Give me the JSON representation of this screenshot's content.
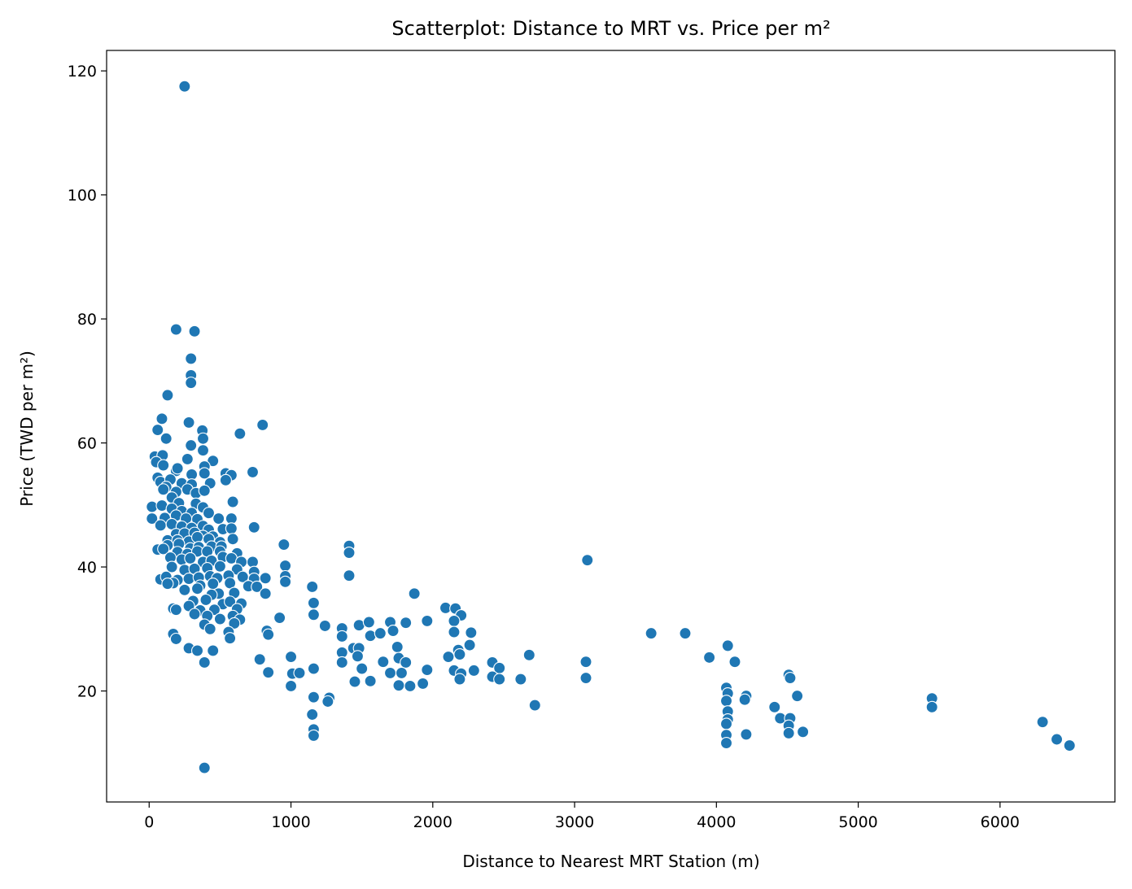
{
  "chart_data": {
    "type": "scatter",
    "title": "Scatterplot: Distance to MRT vs. Price per m²",
    "xlabel": "Distance to Nearest MRT Station (m)",
    "ylabel": "Price (TWD per m²)",
    "xlim": [
      -300,
      6810
    ],
    "ylim": [
      2.1,
      123.3
    ],
    "xticks": [
      0,
      1000,
      2000,
      3000,
      4000,
      5000,
      6000
    ],
    "xtick_labels": [
      "0",
      "1000",
      "2000",
      "3000",
      "4000",
      "5000",
      "6000"
    ],
    "yticks": [
      20,
      40,
      60,
      80,
      100,
      120
    ],
    "ytick_labels": [
      "20",
      "40",
      "60",
      "80",
      "100",
      "120"
    ],
    "grid": false,
    "legend": "none",
    "marker_color": "#1f77b4",
    "series": [
      {
        "points": [
          [
            250,
            117.5
          ],
          [
            390,
            7.6
          ],
          [
            190,
            78.3
          ],
          [
            320,
            78.0
          ],
          [
            295,
            73.6
          ],
          [
            295,
            70.9
          ],
          [
            295,
            69.7
          ],
          [
            130,
            67.7
          ],
          [
            90,
            63.9
          ],
          [
            60,
            62.1
          ],
          [
            280,
            63.3
          ],
          [
            640,
            61.5
          ],
          [
            800,
            62.9
          ],
          [
            375,
            62.0
          ],
          [
            380,
            60.7
          ],
          [
            120,
            60.7
          ],
          [
            295,
            59.6
          ],
          [
            380,
            58.8
          ],
          [
            40,
            57.8
          ],
          [
            95,
            58.0
          ],
          [
            50,
            56.9
          ],
          [
            100,
            56.4
          ],
          [
            450,
            57.1
          ],
          [
            270,
            57.4
          ],
          [
            390,
            56.2
          ],
          [
            190,
            55.5
          ],
          [
            200,
            55.9
          ],
          [
            300,
            54.9
          ],
          [
            390,
            55.1
          ],
          [
            540,
            55.1
          ],
          [
            580,
            54.8
          ],
          [
            730,
            55.3
          ],
          [
            60,
            54.4
          ],
          [
            80,
            53.7
          ],
          [
            150,
            54.1
          ],
          [
            230,
            53.5
          ],
          [
            300,
            53.3
          ],
          [
            430,
            53.5
          ],
          [
            540,
            54.0
          ],
          [
            120,
            52.9
          ],
          [
            100,
            52.5
          ],
          [
            190,
            52.1
          ],
          [
            270,
            52.5
          ],
          [
            330,
            51.9
          ],
          [
            390,
            52.3
          ],
          [
            160,
            51.2
          ],
          [
            210,
            50.3
          ],
          [
            330,
            50.2
          ],
          [
            590,
            50.5
          ],
          [
            20,
            49.7
          ],
          [
            90,
            49.9
          ],
          [
            160,
            49.4
          ],
          [
            380,
            49.6
          ],
          [
            230,
            49.0
          ],
          [
            300,
            48.7
          ],
          [
            420,
            48.7
          ],
          [
            20,
            47.8
          ],
          [
            110,
            47.9
          ],
          [
            190,
            48.3
          ],
          [
            260,
            47.8
          ],
          [
            340,
            47.7
          ],
          [
            490,
            47.8
          ],
          [
            580,
            47.8
          ],
          [
            80,
            46.7
          ],
          [
            160,
            46.9
          ],
          [
            230,
            46.5
          ],
          [
            300,
            46.3
          ],
          [
            380,
            46.6
          ],
          [
            420,
            46.0
          ],
          [
            520,
            46.1
          ],
          [
            580,
            46.2
          ],
          [
            740,
            46.4
          ],
          [
            190,
            45.3
          ],
          [
            250,
            45.4
          ],
          [
            320,
            45.5
          ],
          [
            380,
            45.0
          ],
          [
            450,
            44.9
          ],
          [
            130,
            44.3
          ],
          [
            200,
            44.3
          ],
          [
            280,
            44.1
          ],
          [
            340,
            44.8
          ],
          [
            420,
            44.5
          ],
          [
            500,
            44.0
          ],
          [
            590,
            44.5
          ],
          [
            130,
            43.5
          ],
          [
            210,
            43.7
          ],
          [
            290,
            43.0
          ],
          [
            350,
            43.2
          ],
          [
            440,
            43.3
          ],
          [
            510,
            43.3
          ],
          [
            950,
            43.6
          ],
          [
            1410,
            43.4
          ],
          [
            60,
            42.8
          ],
          [
            100,
            42.9
          ],
          [
            200,
            42.4
          ],
          [
            270,
            42.1
          ],
          [
            340,
            42.5
          ],
          [
            410,
            42.5
          ],
          [
            500,
            42.5
          ],
          [
            620,
            42.2
          ],
          [
            1410,
            42.3
          ],
          [
            150,
            41.5
          ],
          [
            230,
            41.2
          ],
          [
            290,
            41.4
          ],
          [
            380,
            40.8
          ],
          [
            440,
            41.0
          ],
          [
            520,
            41.6
          ],
          [
            580,
            41.4
          ],
          [
            650,
            40.8
          ],
          [
            730,
            40.8
          ],
          [
            960,
            40.2
          ],
          [
            3090,
            41.1
          ],
          [
            160,
            40.0
          ],
          [
            250,
            39.5
          ],
          [
            320,
            39.7
          ],
          [
            410,
            39.8
          ],
          [
            500,
            40.1
          ],
          [
            620,
            39.6
          ],
          [
            740,
            39.2
          ],
          [
            80,
            38.0
          ],
          [
            120,
            38.4
          ],
          [
            200,
            37.9
          ],
          [
            280,
            38.1
          ],
          [
            350,
            38.3
          ],
          [
            430,
            38.5
          ],
          [
            480,
            38.2
          ],
          [
            560,
            38.6
          ],
          [
            660,
            38.4
          ],
          [
            740,
            38.1
          ],
          [
            820,
            38.2
          ],
          [
            960,
            38.5
          ],
          [
            1410,
            38.6
          ],
          [
            170,
            37.4
          ],
          [
            130,
            37.3
          ],
          [
            360,
            37.0
          ],
          [
            450,
            37.3
          ],
          [
            570,
            37.4
          ],
          [
            700,
            36.9
          ],
          [
            760,
            36.8
          ],
          [
            960,
            37.6
          ],
          [
            1150,
            36.8
          ],
          [
            250,
            36.3
          ],
          [
            340,
            36.5
          ],
          [
            490,
            35.7
          ],
          [
            440,
            35.5
          ],
          [
            600,
            35.8
          ],
          [
            820,
            35.7
          ],
          [
            1870,
            35.7
          ],
          [
            310,
            34.5
          ],
          [
            400,
            34.7
          ],
          [
            520,
            34.0
          ],
          [
            570,
            34.4
          ],
          [
            650,
            34.1
          ],
          [
            1160,
            34.2
          ],
          [
            170,
            33.3
          ],
          [
            190,
            33.1
          ],
          [
            280,
            33.7
          ],
          [
            360,
            33.0
          ],
          [
            460,
            33.1
          ],
          [
            620,
            33.2
          ],
          [
            2090,
            33.4
          ],
          [
            2160,
            33.3
          ],
          [
            320,
            32.4
          ],
          [
            410,
            32.1
          ],
          [
            500,
            31.6
          ],
          [
            590,
            32.1
          ],
          [
            640,
            31.5
          ],
          [
            920,
            31.8
          ],
          [
            1160,
            32.3
          ],
          [
            1960,
            31.3
          ],
          [
            2200,
            32.2
          ],
          [
            390,
            30.7
          ],
          [
            430,
            30.0
          ],
          [
            600,
            30.9
          ],
          [
            830,
            29.7
          ],
          [
            1240,
            30.5
          ],
          [
            1360,
            30.1
          ],
          [
            1480,
            30.6
          ],
          [
            1550,
            31.1
          ],
          [
            1700,
            31.1
          ],
          [
            1810,
            31.0
          ],
          [
            2150,
            31.3
          ],
          [
            170,
            29.2
          ],
          [
            190,
            28.4
          ],
          [
            560,
            29.5
          ],
          [
            570,
            28.5
          ],
          [
            840,
            29.1
          ],
          [
            1360,
            28.8
          ],
          [
            1560,
            28.9
          ],
          [
            1630,
            29.3
          ],
          [
            1720,
            29.7
          ],
          [
            2150,
            29.5
          ],
          [
            2270,
            29.4
          ],
          [
            3540,
            29.3
          ],
          [
            3780,
            29.3
          ],
          [
            280,
            26.9
          ],
          [
            340,
            26.5
          ],
          [
            450,
            26.5
          ],
          [
            780,
            25.1
          ],
          [
            1000,
            25.5
          ],
          [
            1360,
            26.2
          ],
          [
            1440,
            26.9
          ],
          [
            1480,
            26.9
          ],
          [
            1750,
            27.1
          ],
          [
            2180,
            26.6
          ],
          [
            2260,
            27.4
          ],
          [
            4080,
            27.3
          ],
          [
            390,
            24.6
          ],
          [
            1360,
            24.6
          ],
          [
            1470,
            25.6
          ],
          [
            1650,
            24.7
          ],
          [
            1760,
            25.3
          ],
          [
            1810,
            24.6
          ],
          [
            2110,
            25.5
          ],
          [
            2190,
            25.9
          ],
          [
            2420,
            24.6
          ],
          [
            2680,
            25.8
          ],
          [
            3080,
            24.7
          ],
          [
            3950,
            25.4
          ],
          [
            4130,
            24.7
          ],
          [
            840,
            23.0
          ],
          [
            1010,
            22.8
          ],
          [
            1060,
            22.9
          ],
          [
            1160,
            23.6
          ],
          [
            1500,
            23.6
          ],
          [
            1700,
            22.9
          ],
          [
            1780,
            22.9
          ],
          [
            1960,
            23.4
          ],
          [
            2150,
            23.3
          ],
          [
            2200,
            22.8
          ],
          [
            2290,
            23.3
          ],
          [
            2470,
            23.7
          ],
          [
            1000,
            20.8
          ],
          [
            1450,
            21.5
          ],
          [
            1560,
            21.6
          ],
          [
            1760,
            20.9
          ],
          [
            1840,
            20.8
          ],
          [
            1930,
            21.2
          ],
          [
            2190,
            21.9
          ],
          [
            2420,
            22.3
          ],
          [
            2620,
            21.9
          ],
          [
            2470,
            21.9
          ],
          [
            3080,
            22.1
          ],
          [
            4510,
            22.6
          ],
          [
            4520,
            22.1
          ],
          [
            1270,
            18.9
          ],
          [
            1260,
            18.3
          ],
          [
            1160,
            19.0
          ],
          [
            2720,
            17.7
          ],
          [
            4070,
            20.5
          ],
          [
            4080,
            19.6
          ],
          [
            4070,
            18.4
          ],
          [
            4210,
            19.2
          ],
          [
            4200,
            18.6
          ],
          [
            4570,
            19.2
          ],
          [
            5520,
            18.8
          ],
          [
            5520,
            17.4
          ],
          [
            1150,
            16.2
          ],
          [
            1160,
            13.8
          ],
          [
            1160,
            12.8
          ],
          [
            4080,
            16.7
          ],
          [
            4080,
            15.4
          ],
          [
            4070,
            14.7
          ],
          [
            4070,
            12.9
          ],
          [
            4070,
            11.6
          ],
          [
            4210,
            13.0
          ],
          [
            4410,
            17.4
          ],
          [
            4450,
            15.6
          ],
          [
            4520,
            15.6
          ],
          [
            4510,
            14.4
          ],
          [
            4510,
            13.2
          ],
          [
            4610,
            13.4
          ],
          [
            6300,
            15.0
          ],
          [
            6400,
            12.2
          ],
          [
            6490,
            11.2
          ]
        ]
      }
    ]
  }
}
